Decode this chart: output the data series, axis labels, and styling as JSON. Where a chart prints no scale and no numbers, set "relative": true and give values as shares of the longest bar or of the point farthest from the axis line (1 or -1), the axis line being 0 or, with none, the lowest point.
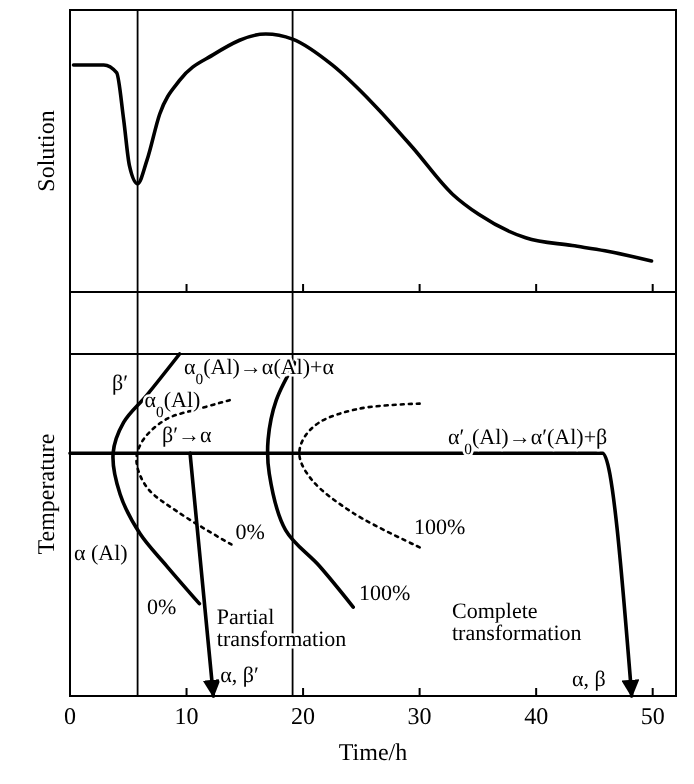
{
  "chart_data": [
    {
      "type": "line",
      "ylabel": "Solution",
      "relative": true,
      "xlim": [
        0,
        52
      ],
      "xticks": [
        0,
        10,
        20,
        30,
        40,
        50
      ],
      "tick_labels": false,
      "series": [
        {
          "color": "#000000",
          "line_style": "solid",
          "x": [
            0.3,
            2.9,
            4.0,
            4.6,
            5.1,
            5.8,
            6.6,
            7.7,
            9.4,
            12.3,
            16.8,
            19.1,
            22.5,
            26,
            29.4,
            32.8,
            35.1,
            39.1,
            43.1,
            45.9,
            49.9
          ],
          "values": [
            0.88,
            0.88,
            0.85,
            0.67,
            0.49,
            0.42,
            0.51,
            0.69,
            0.82,
            0.92,
            1.0,
            0.98,
            0.88,
            0.73,
            0.56,
            0.38,
            0.3,
            0.21,
            0.18,
            0.16,
            0.12
          ]
        }
      ],
      "ref_lines": [
        {
          "axis": "x",
          "value": 5.8
        },
        {
          "axis": "x",
          "value": 19.1
        }
      ]
    },
    {
      "type": "line",
      "xlabel": "Time/h",
      "ylabel": "Temperature",
      "relative": true,
      "xlim": [
        0,
        52
      ],
      "xticks": [
        0,
        10,
        20,
        30,
        40,
        50
      ],
      "series": [
        {
          "color": "#000000",
          "line_style": "solid",
          "x": [
            9.4,
            6.6,
            4.6,
            3.7,
            4.3,
            6.0,
            8.3,
            11.1
          ],
          "values": [
            1.0,
            0.88,
            0.8,
            0.71,
            0.59,
            0.475,
            0.38,
            0.27
          ]
        },
        {
          "color": "#000000",
          "line_style": "dotted",
          "x": [
            13.7,
            11.1,
            8.3,
            6.3,
            5.7,
            6.6,
            9.4,
            14
          ],
          "values": [
            0.865,
            0.84,
            0.81,
            0.75,
            0.69,
            0.61,
            0.535,
            0.44
          ]
        },
        {
          "color": "#000000",
          "line_style": "solid",
          "x": [
            19.4,
            17.7,
            17.0,
            17.1,
            18.5,
            21.4,
            24.3
          ],
          "values": [
            0.98,
            0.865,
            0.75,
            0.65,
            0.485,
            0.38,
            0.26
          ]
        },
        {
          "color": "#000000",
          "line_style": "dotted",
          "x": [
            30,
            24.8,
            21.4,
            20,
            19.7,
            20.8,
            24.3,
            30.3
          ],
          "values": [
            0.855,
            0.84,
            0.8,
            0.75,
            0.7,
            0.63,
            0.535,
            0.43
          ]
        },
        {
          "color": "#000000",
          "line_style": "solid",
          "x": [
            0,
            45.7,
            48.2
          ],
          "values": [
            0.71,
            0.71,
            0
          ]
        },
        {
          "color": "#000000",
          "line_style": "solid",
          "x": [
            10.3,
            12.3
          ],
          "values": [
            0.71,
            0
          ]
        }
      ],
      "ref_lines": [
        {
          "axis": "x",
          "value": 5.8
        },
        {
          "axis": "x",
          "value": 19.1
        },
        {
          "axis": "y",
          "value": 1.0
        }
      ],
      "annotations": [
        "β′",
        "α$_{0}$(Al)→α(Al)+α",
        {
          "text": "α$_{0}$(Al)",
          "x": 6.4,
          "y": 0.845
        },
        "β′→α",
        "α′$_{0}$(Al)→α′(Al)+β",
        "α (Al)",
        {
          "text": "0%",
          "x": 14.2,
          "y": 0.46
        },
        {
          "text": "0%",
          "x": 6.6,
          "y": 0.24
        },
        "100%",
        {
          "text": "100%",
          "x": 24.8,
          "y": 0.28
        },
        {
          "text": "Partial\ntransformation",
          "x": 12.6,
          "y": 0.21
        },
        "Complete\ntransformation",
        {
          "text": "α, β′",
          "x": 12.9,
          "y": 0.04
        },
        "α, β"
      ]
    }
  ]
}
